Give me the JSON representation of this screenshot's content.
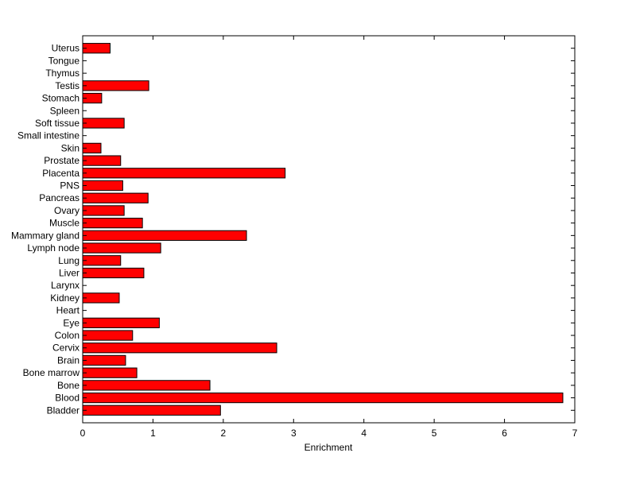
{
  "chart_data": {
    "type": "bar",
    "orientation": "horizontal",
    "categories": [
      "Bladder",
      "Blood",
      "Bone",
      "Bone marrow",
      "Brain",
      "Cervix",
      "Colon",
      "Eye",
      "Heart",
      "Kidney",
      "Larynx",
      "Liver",
      "Lung",
      "Lymph node",
      "Mammary gland",
      "Muscle",
      "Ovary",
      "Pancreas",
      "PNS",
      "Placenta",
      "Prostate",
      "Skin",
      "Small intestine",
      "Soft tissue",
      "Spleen",
      "Stomach",
      "Testis",
      "Thymus",
      "Tongue",
      "Uterus"
    ],
    "values": [
      1.96,
      6.83,
      1.81,
      0.77,
      0.61,
      2.76,
      0.71,
      1.09,
      0,
      0.52,
      0,
      0.87,
      0.54,
      1.11,
      2.33,
      0.85,
      0.59,
      0.93,
      0.57,
      2.88,
      0.54,
      0.26,
      0,
      0.59,
      0,
      0.27,
      0.94,
      0,
      0,
      0.39
    ],
    "xlabel": "Enrichment",
    "xlim": [
      0,
      7
    ],
    "xticks": [
      "0",
      "1",
      "2",
      "3",
      "4",
      "5",
      "6",
      "7"
    ],
    "bar_color": "#ff0000",
    "grid": false,
    "legend": "none"
  }
}
